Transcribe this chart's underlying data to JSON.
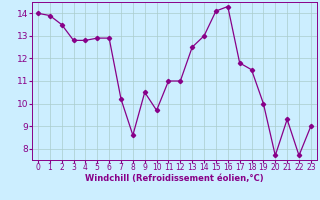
{
  "x": [
    0,
    1,
    2,
    3,
    4,
    5,
    6,
    7,
    8,
    9,
    10,
    11,
    12,
    13,
    14,
    15,
    16,
    17,
    18,
    19,
    20,
    21,
    22,
    23
  ],
  "y": [
    14.0,
    13.9,
    13.5,
    12.8,
    12.8,
    12.9,
    12.9,
    10.2,
    8.6,
    10.5,
    9.7,
    11.0,
    11.0,
    12.5,
    13.0,
    14.1,
    14.3,
    11.8,
    11.5,
    10.0,
    7.7,
    9.3,
    7.7,
    9.0
  ],
  "line_color": "#880088",
  "marker": "D",
  "marker_size": 2.2,
  "line_width": 0.9,
  "xlim": [
    -0.5,
    23.5
  ],
  "ylim": [
    7.5,
    14.5
  ],
  "xticks": [
    0,
    1,
    2,
    3,
    4,
    5,
    6,
    7,
    8,
    9,
    10,
    11,
    12,
    13,
    14,
    15,
    16,
    17,
    18,
    19,
    20,
    21,
    22,
    23
  ],
  "yticks": [
    8,
    9,
    10,
    11,
    12,
    13,
    14
  ],
  "xlabel": "Windchill (Refroidissement éolien,°C)",
  "background_color": "#cceeff",
  "grid_color": "#aacccc",
  "label_color": "#880088",
  "tick_color": "#880088",
  "xlabel_fontsize": 6.0,
  "ytick_fontsize": 6.5,
  "xtick_fontsize": 5.5
}
